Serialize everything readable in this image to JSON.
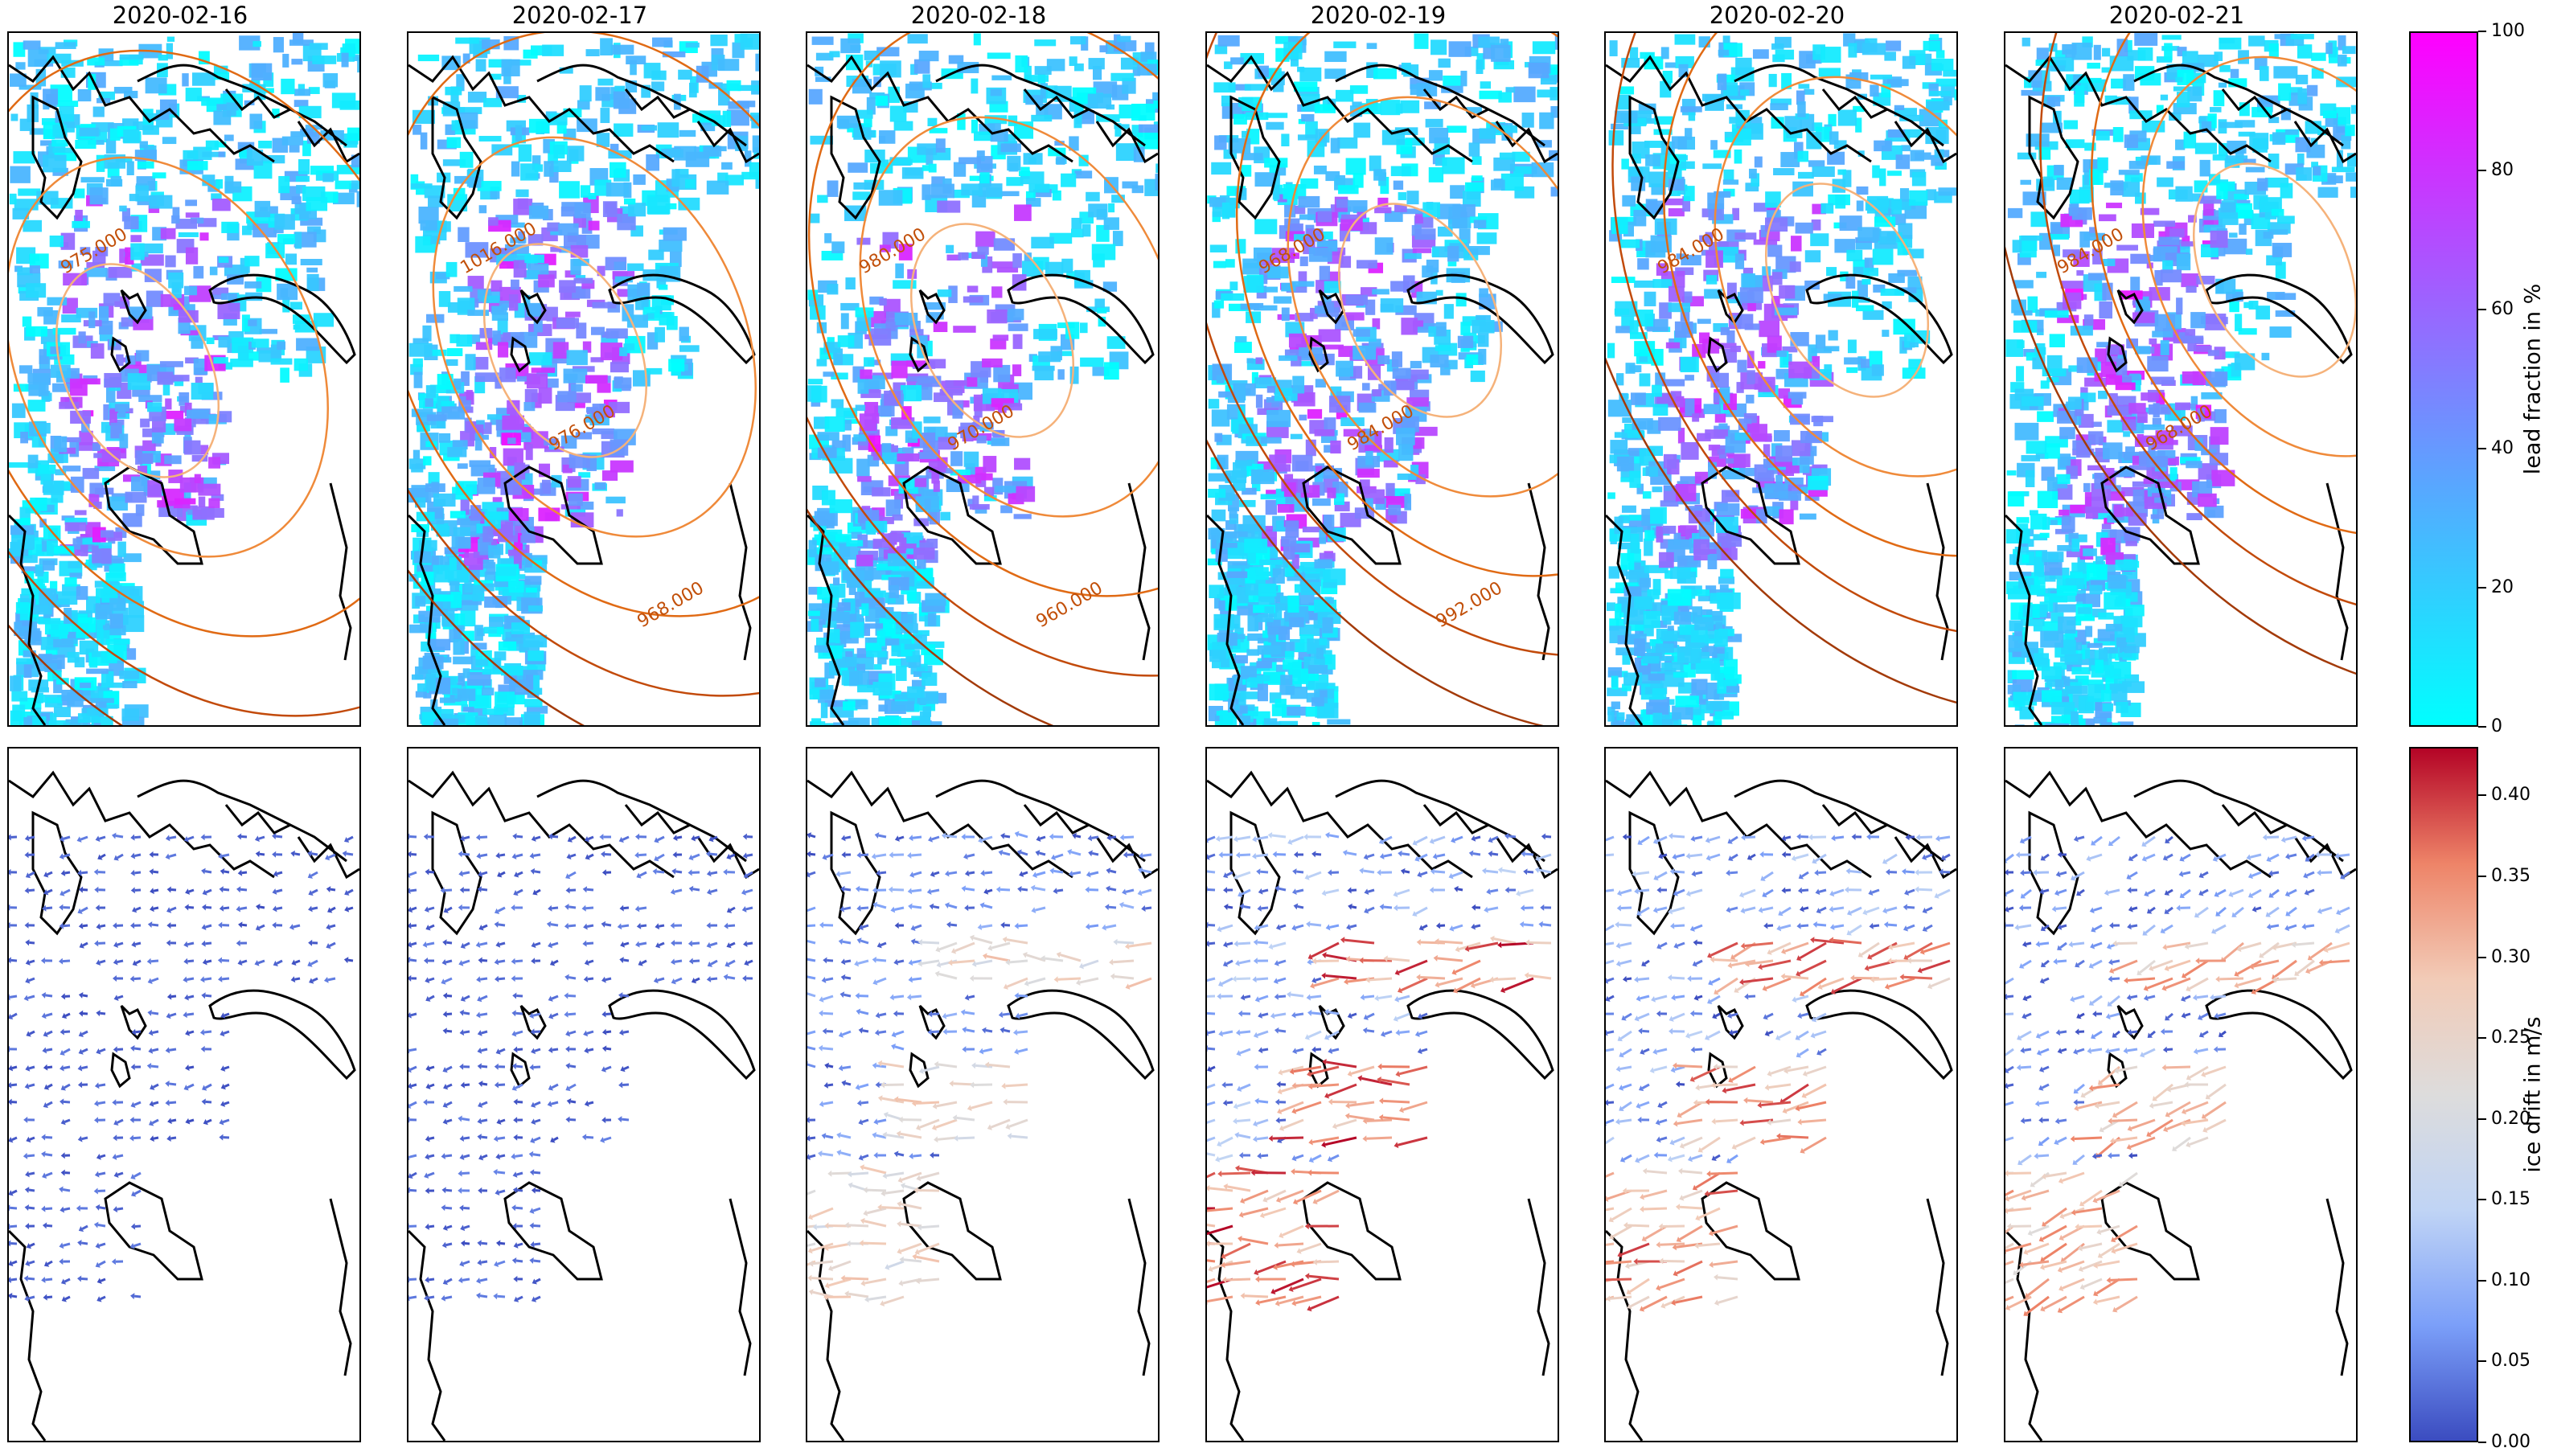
{
  "figure": {
    "dates": [
      "2020-02-16",
      "2020-02-17",
      "2020-02-18",
      "2020-02-19",
      "2020-02-20",
      "2020-02-21"
    ],
    "top_row": "lead fraction with sea-level pressure contours",
    "bottom_row": "ice drift vectors"
  },
  "colorbars": {
    "lead": {
      "label": "lead fraction in %",
      "ticks": [
        "0",
        "20",
        "40",
        "60",
        "80",
        "100"
      ],
      "colors": [
        "#00ffff",
        "#ff00ff"
      ]
    },
    "drift": {
      "label": "ice drift in m/s",
      "ticks": [
        "0.00",
        "0.05",
        "0.10",
        "0.15",
        "0.20",
        "0.25",
        "0.30",
        "0.35",
        "0.40"
      ],
      "range": [
        0,
        0.43
      ],
      "colors": [
        "#3b4cc0",
        "#7b9ff9",
        "#c0d4f5",
        "#dddcdc",
        "#f2cbb7",
        "#ee8468",
        "#b40426"
      ]
    }
  },
  "contour_labels": [
    [
      "975.000"
    ],
    [
      "1016.000",
      "976.000",
      "968.000"
    ],
    [
      "980.000",
      "970.000",
      "960.000"
    ],
    [
      "968.000",
      "984.000",
      "992.000"
    ],
    [
      "984.000"
    ],
    [
      "984.000",
      "968.000"
    ]
  ],
  "drift_max_by_day": [
    0.12,
    0.14,
    0.3,
    0.43,
    0.4,
    0.36
  ]
}
